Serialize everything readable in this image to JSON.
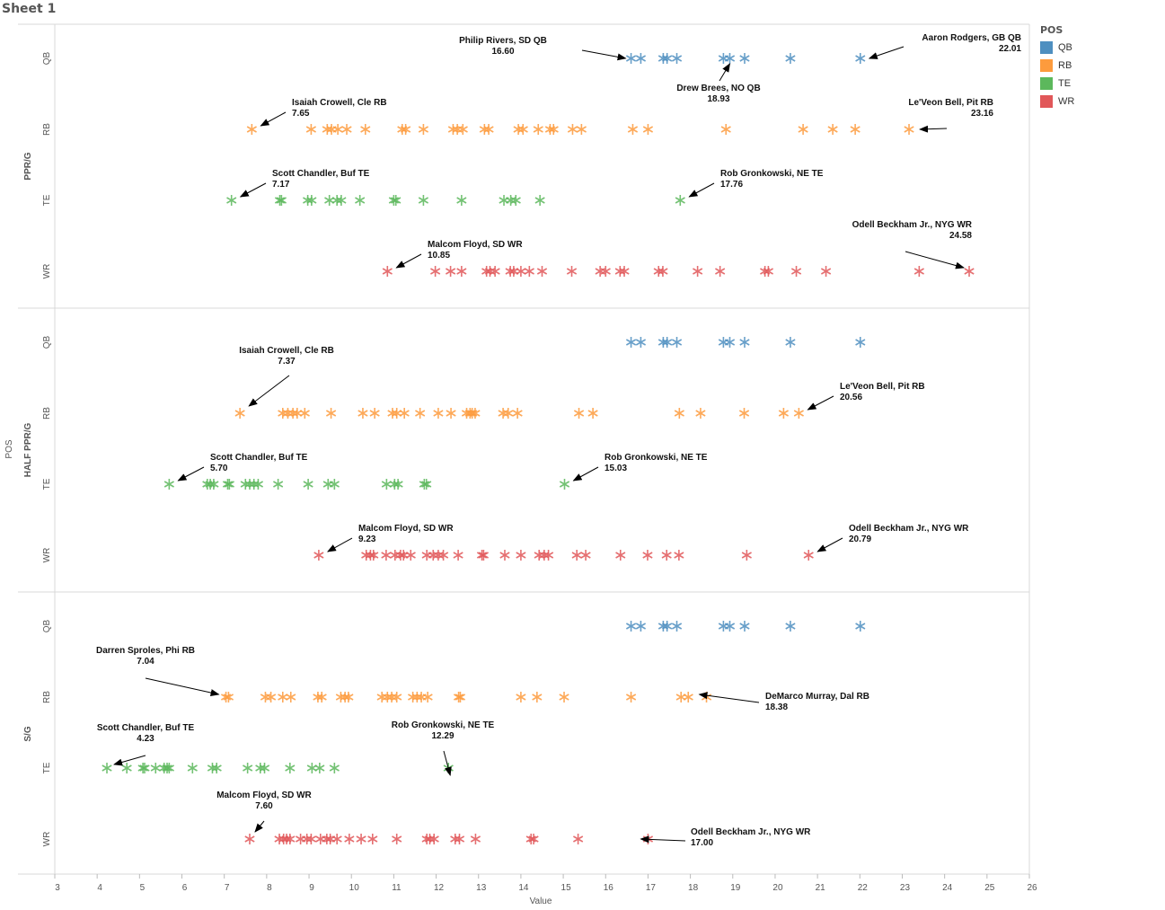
{
  "sheet_title": "Sheet 1",
  "legend": {
    "title": "POS",
    "items": [
      {
        "label": "QB",
        "color": "#4e8fc0"
      },
      {
        "label": "RB",
        "color": "#fd9b3d"
      },
      {
        "label": "TE",
        "color": "#5cb85c"
      },
      {
        "label": "WR",
        "color": "#e15759"
      }
    ]
  },
  "chart_data": {
    "type": "scatter",
    "marker": "asterisk",
    "title": "Sheet 1",
    "xlabel": "Value",
    "ylabel": "POS",
    "xlim": [
      3,
      26
    ],
    "x_ticks": [
      3,
      4,
      5,
      6,
      7,
      8,
      9,
      10,
      11,
      12,
      13,
      14,
      15,
      16,
      17,
      18,
      19,
      20,
      21,
      22,
      23,
      24,
      25,
      26
    ],
    "row_categories": [
      "QB",
      "RB",
      "TE",
      "WR"
    ],
    "panels": [
      {
        "label": "PPR/G",
        "series": [
          {
            "name": "QB",
            "values": [
              16.6,
              16.83,
              17.36,
              17.45,
              17.68,
              18.78,
              18.93,
              19.28,
              20.36,
              22.01
            ]
          },
          {
            "name": "RB",
            "values": [
              7.65,
              9.05,
              9.43,
              9.53,
              9.68,
              9.89,
              10.33,
              11.2,
              11.28,
              11.7,
              12.4,
              12.5,
              12.63,
              13.14,
              13.24,
              13.94,
              14.05,
              14.41,
              14.69,
              14.77,
              15.22,
              15.43,
              16.64,
              17.0,
              18.84,
              20.66,
              21.36,
              21.89,
              23.16
            ]
          },
          {
            "name": "TE",
            "values": [
              7.17,
              8.31,
              8.35,
              8.97,
              9.06,
              9.48,
              9.66,
              9.76,
              10.2,
              11.0,
              11.05,
              11.7,
              12.6,
              13.6,
              13.76,
              13.88,
              14.45,
              17.76
            ]
          },
          {
            "name": "WR",
            "values": [
              10.85,
              11.98,
              12.34,
              12.6,
              13.19,
              13.27,
              13.39,
              13.75,
              13.83,
              14.0,
              14.2,
              14.5,
              15.2,
              15.87,
              16.0,
              16.34,
              16.44,
              17.25,
              17.35,
              18.17,
              18.7,
              19.76,
              19.84,
              20.5,
              21.2,
              23.4,
              24.58
            ]
          }
        ],
        "annotations": [
          {
            "series": "QB",
            "text": "Philip Rivers, SD QB",
            "value": "16.60"
          },
          {
            "series": "QB",
            "text": "Drew Brees, NO QB",
            "value": "18.93"
          },
          {
            "series": "QB",
            "text": "Aaron Rodgers, GB QB",
            "value": "22.01"
          },
          {
            "series": "RB",
            "text": "Isaiah Crowell, Cle RB",
            "value": "7.65"
          },
          {
            "series": "RB",
            "text": "Le'Veon Bell, Pit RB",
            "value": "23.16"
          },
          {
            "series": "TE",
            "text": "Scott Chandler, Buf TE",
            "value": "7.17"
          },
          {
            "series": "TE",
            "text": "Rob Gronkowski, NE TE",
            "value": "17.76"
          },
          {
            "series": "WR",
            "text": "Malcom Floyd, SD WR",
            "value": "10.85"
          },
          {
            "series": "WR",
            "text": "Odell Beckham Jr., NYG WR",
            "value": "24.58"
          }
        ]
      },
      {
        "label": "HALF PPR/G",
        "series": [
          {
            "name": "QB",
            "values": [
              16.6,
              16.83,
              17.36,
              17.45,
              17.68,
              18.78,
              18.93,
              19.28,
              20.36,
              22.01
            ]
          },
          {
            "name": "RB",
            "values": [
              7.37,
              8.38,
              8.5,
              8.62,
              8.72,
              8.9,
              9.52,
              10.27,
              10.55,
              10.97,
              11.07,
              11.25,
              11.62,
              12.05,
              12.35,
              12.72,
              12.8,
              12.85,
              12.92,
              13.58,
              13.7,
              13.92,
              15.37,
              15.7,
              17.74,
              18.24,
              19.27,
              20.2,
              20.56
            ]
          },
          {
            "name": "TE",
            "values": [
              5.7,
              6.6,
              6.67,
              6.75,
              7.08,
              7.12,
              7.5,
              7.6,
              7.7,
              7.8,
              8.27,
              8.98,
              9.45,
              9.6,
              10.83,
              11.02,
              11.1,
              11.72,
              11.77,
              15.03
            ]
          },
          {
            "name": "WR",
            "values": [
              9.23,
              10.35,
              10.45,
              10.52,
              10.82,
              11.03,
              11.16,
              11.23,
              11.4,
              11.78,
              11.93,
              12.05,
              12.17,
              12.52,
              13.08,
              13.12,
              13.62,
              14.0,
              14.43,
              14.55,
              14.65,
              15.32,
              15.53,
              16.35,
              16.99,
              17.44,
              17.73,
              19.33,
              20.79
            ]
          }
        ],
        "annotations": [
          {
            "series": "RB",
            "text": "Isaiah Crowell, Cle RB",
            "value": "7.37"
          },
          {
            "series": "RB",
            "text": "Le'Veon Bell, Pit RB",
            "value": "20.56"
          },
          {
            "series": "TE",
            "text": "Scott Chandler, Buf TE",
            "value": "5.70"
          },
          {
            "series": "TE",
            "text": "Rob Gronkowski, NE TE",
            "value": "15.03"
          },
          {
            "series": "WR",
            "text": "Malcom Floyd, SD WR",
            "value": "9.23"
          },
          {
            "series": "WR",
            "text": "Odell Beckham Jr., NYG WR",
            "value": "20.79"
          }
        ]
      },
      {
        "label": "S/G",
        "series": [
          {
            "name": "QB",
            "values": [
              16.6,
              16.83,
              17.36,
              17.45,
              17.68,
              18.78,
              18.93,
              19.28,
              20.36,
              22.01
            ]
          },
          {
            "name": "RB",
            "values": [
              7.04,
              7.1,
              7.97,
              8.1,
              8.38,
              8.57,
              9.21,
              9.3,
              9.75,
              9.85,
              9.93,
              10.72,
              10.85,
              10.95,
              11.07,
              11.45,
              11.55,
              11.65,
              11.8,
              12.53,
              12.57,
              14.0,
              14.38,
              15.02,
              16.6,
              17.78,
              17.95,
              18.38
            ]
          },
          {
            "name": "TE",
            "values": [
              4.23,
              4.7,
              5.08,
              5.12,
              5.38,
              5.58,
              5.65,
              5.7,
              6.25,
              6.72,
              6.82,
              7.55,
              7.85,
              7.95,
              8.55,
              9.07,
              9.25,
              9.6,
              12.29
            ]
          },
          {
            "name": "WR",
            "values": [
              7.6,
              8.3,
              8.4,
              8.47,
              8.55,
              8.8,
              8.95,
              9.05,
              9.27,
              9.42,
              9.5,
              9.66,
              9.95,
              10.23,
              10.5,
              11.07,
              11.78,
              11.85,
              11.95,
              12.45,
              12.55,
              12.93,
              14.24,
              14.3,
              15.35,
              17.0
            ]
          }
        ],
        "annotations": [
          {
            "series": "RB",
            "text": "Darren Sproles, Phi RB",
            "value": "7.04"
          },
          {
            "series": "RB",
            "text": "DeMarco Murray, Dal RB",
            "value": "18.38"
          },
          {
            "series": "TE",
            "text": "Scott Chandler, Buf TE",
            "value": "4.23"
          },
          {
            "series": "TE",
            "text": "Rob Gronkowski, NE TE",
            "value": "12.29"
          },
          {
            "series": "WR",
            "text": "Malcom Floyd, SD WR",
            "value": "7.60"
          },
          {
            "series": "WR",
            "text": "Odell Beckham Jr., NYG WR",
            "value": "17.00"
          }
        ]
      }
    ]
  }
}
